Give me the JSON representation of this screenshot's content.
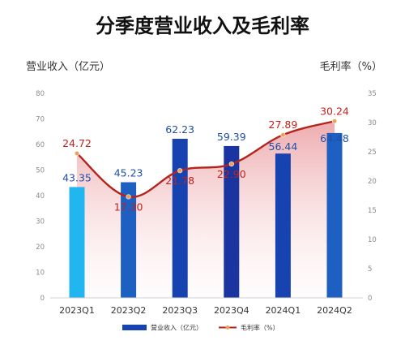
{
  "chart_data": {
    "type": "bar+line",
    "title": "分季度营业收入及毛利率",
    "categories": [
      "2023Q1",
      "2023Q2",
      "2023Q3",
      "2023Q4",
      "2024Q1",
      "2024Q2"
    ],
    "y_left": {
      "label": "营业收入（亿元）",
      "range": [
        0,
        80
      ],
      "ticks": [
        "0",
        "10",
        "20",
        "30",
        "40",
        "50",
        "60",
        "70",
        "80"
      ]
    },
    "y_right": {
      "label": "毛利率（%）",
      "range": [
        0,
        35
      ],
      "ticks": [
        "0",
        "5",
        "10",
        "15",
        "20",
        "25",
        "30",
        "35"
      ]
    },
    "series": [
      {
        "name": "营业收入（亿元）",
        "kind": "bar",
        "axis": "left",
        "values": [
          43.35,
          45.23,
          62.23,
          59.39,
          56.44,
          64.48
        ],
        "labels": [
          "43.35",
          "45.23",
          "62.23",
          "59.39",
          "56.44",
          "64.48"
        ],
        "colors": [
          "#22b6f0",
          "#1e5fc2",
          "#1743b0",
          "#1a35a0",
          "#1743b0",
          "#1e5fc2"
        ]
      },
      {
        "name": "毛利率（%）",
        "kind": "line",
        "axis": "right",
        "values": [
          24.72,
          17.3,
          21.78,
          22.9,
          27.89,
          30.24
        ],
        "labels": [
          "24.72",
          "17.30",
          "21.78",
          "22.90",
          "27.89",
          "30.24"
        ],
        "color": "#b5241c"
      }
    ],
    "legend": {
      "placement": "bottom-center"
    },
    "grid": false
  }
}
